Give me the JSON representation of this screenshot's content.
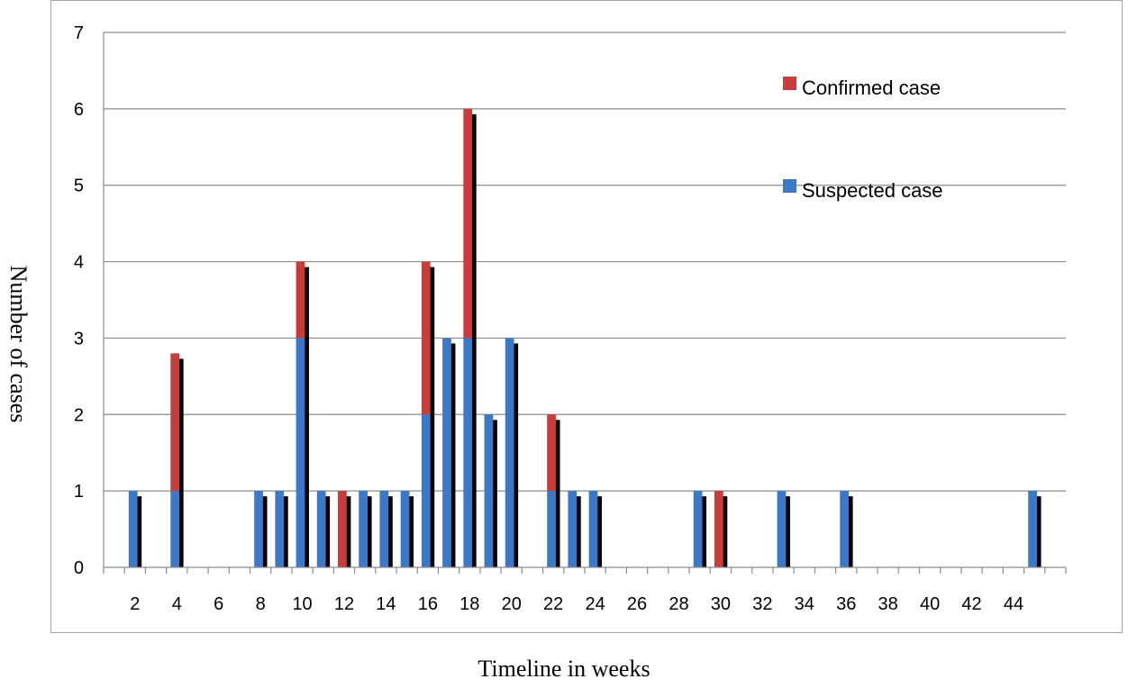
{
  "chart_data": {
    "type": "bar",
    "title": "",
    "xlabel": "Timeline in weeks",
    "ylabel": "Number of cases",
    "ylim": [
      0,
      7
    ],
    "yticks": [
      0,
      1,
      2,
      3,
      4,
      5,
      6,
      7
    ],
    "xlim": [
      1,
      47
    ],
    "xticks": [
      2,
      4,
      6,
      8,
      10,
      12,
      14,
      16,
      18,
      20,
      22,
      24,
      26,
      28,
      30,
      32,
      34,
      36,
      38,
      40,
      42,
      44
    ],
    "grid": true,
    "stacked": true,
    "legend_position": "top-right",
    "x": [
      2,
      4,
      8,
      9,
      10,
      11,
      12,
      13,
      14,
      15,
      16,
      17,
      18,
      19,
      20,
      22,
      23,
      24,
      29,
      30,
      33,
      36,
      45
    ],
    "series": [
      {
        "name": "Suspected case",
        "color": "#3c78c8",
        "values": [
          1,
          1,
          1,
          1,
          3,
          1,
          0,
          1,
          1,
          1,
          2,
          3,
          3,
          2,
          3,
          1,
          1,
          1,
          1,
          0,
          1,
          1,
          1
        ]
      },
      {
        "name": "Confirmed case",
        "color": "#c83c3c",
        "values": [
          0,
          1.8,
          0,
          0,
          1,
          0,
          1,
          0,
          0,
          0,
          2,
          0,
          3,
          0,
          0,
          1,
          0,
          0,
          0,
          1,
          0,
          0,
          0
        ]
      }
    ],
    "shadow_color": "#000000"
  }
}
